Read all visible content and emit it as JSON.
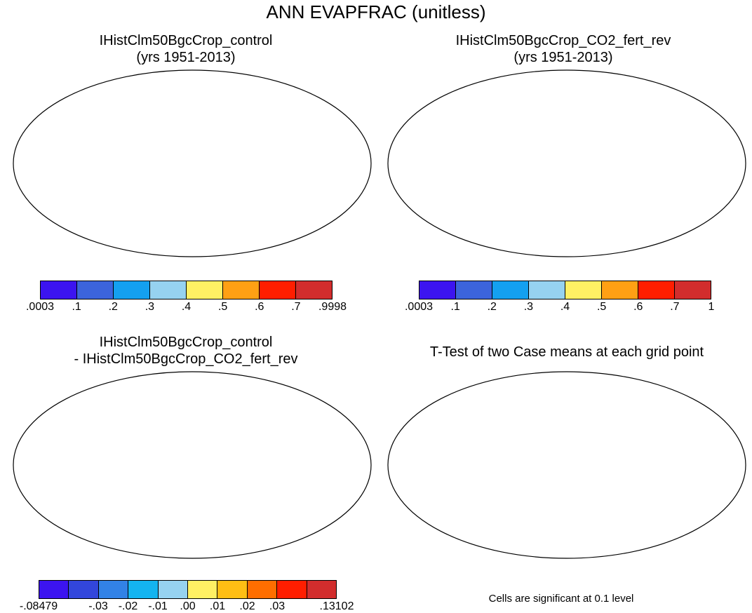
{
  "main_title": "ANN EVAPFRAC (unitless)",
  "panels": {
    "top_left": {
      "title_line1": "IHistClm50BgcCrop_control",
      "title_line2": "(yrs 1951-2013)"
    },
    "top_right": {
      "title_line1": "IHistClm50BgcCrop_CO2_fert_rev",
      "title_line2": "(yrs 1951-2013)"
    },
    "bottom_left": {
      "title_line1": "IHistClm50BgcCrop_control",
      "title_line2": "- IHistClm50BgcCrop_CO2_fert_rev"
    },
    "bottom_right": {
      "title_line1": "T-Test of two Case means at each grid point"
    }
  },
  "colorbars": {
    "top_left": {
      "colors": [
        "#3c14f0",
        "#3c64dc",
        "#14a0f0",
        "#96d2f0",
        "#fff064",
        "#ffa014",
        "#ff1e00",
        "#d22d2d"
      ],
      "labels": [
        ".0003",
        ".1",
        ".2",
        ".3",
        ".4",
        ".5",
        ".6",
        ".7",
        ".9998"
      ]
    },
    "top_right": {
      "colors": [
        "#3c14f0",
        "#3c64dc",
        "#14a0f0",
        "#96d2f0",
        "#fff064",
        "#ffa014",
        "#ff1e00",
        "#d22d2d"
      ],
      "labels": [
        ".0003",
        ".1",
        ".2",
        ".3",
        ".4",
        ".5",
        ".6",
        ".7",
        "1"
      ]
    },
    "bottom_left": {
      "colors": [
        "#3c14f0",
        "#3246dc",
        "#3282e6",
        "#14b4f0",
        "#96d2f0",
        "#fff064",
        "#ffbe14",
        "#ff6e00",
        "#ff1e00",
        "#d22d2d"
      ],
      "labels": [
        "-.08479",
        "",
        "-.03",
        "-.02",
        "-.01",
        ".00",
        ".01",
        ".02",
        ".03",
        "",
        ".13102"
      ]
    }
  },
  "footnote": "Cells are significant at 0.1 level",
  "map_fill_colors": {
    "top_left": {
      "north": "#d22d2d",
      "mid": "#ff1e00",
      "desert": "#3c14f0",
      "dry": "#14a0f0",
      "tropical": "#d22d2d",
      "semi": "#ffa014",
      "austral": "#96d2f0"
    },
    "top_right": {
      "north": "#d22d2d",
      "mid": "#ff1e00",
      "desert": "#3c14f0",
      "dry": "#14a0f0",
      "tropical": "#d22d2d",
      "semi": "#ffa014",
      "austral": "#96d2f0"
    },
    "bottom_left": {
      "north": "#3c14f0",
      "mid": "#3282e6",
      "desert": "#96d2f0",
      "dry": "#96d2f0",
      "tropical": "#3282e6",
      "semi": "#fff064",
      "austral": "#96d2f0"
    },
    "bottom_right": {
      "north": "#ff0000",
      "mid": "#ffffff",
      "desert": "#ffffff",
      "dry": "#ffffff",
      "tropical": "#ff0000",
      "semi": "#ffffff",
      "austral": "#ffffff"
    }
  }
}
